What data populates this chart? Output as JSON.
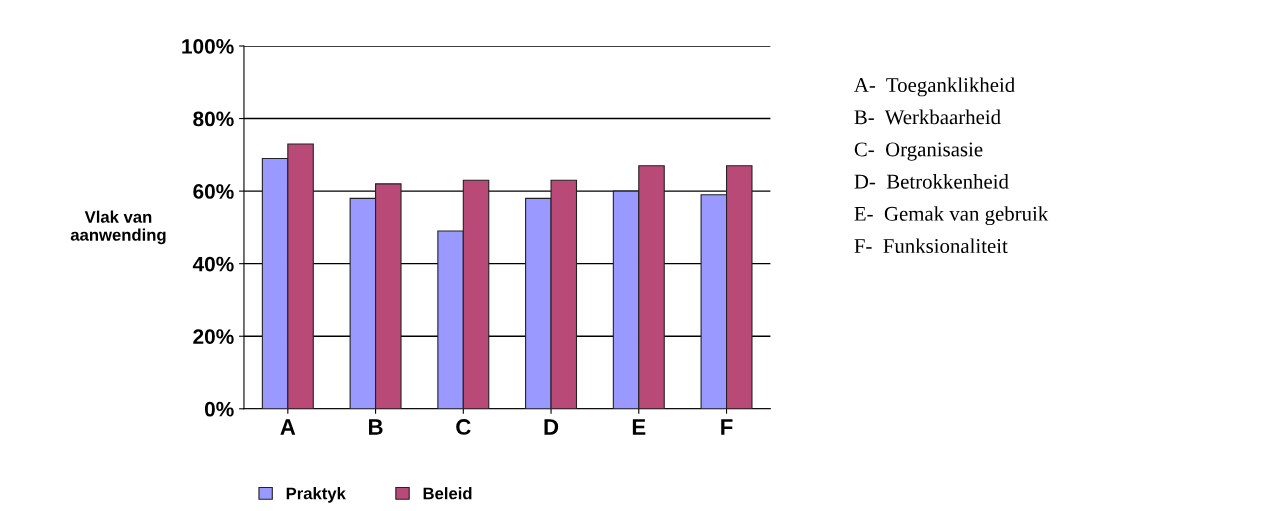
{
  "chart_data": {
    "type": "bar",
    "ylabel": "Vlak van\naanwending",
    "categories": [
      "A",
      "B",
      "C",
      "D",
      "E",
      "F"
    ],
    "series": [
      {
        "name": "Praktyk",
        "color": "#9999ff",
        "values": [
          69,
          58,
          49,
          58,
          60,
          59
        ]
      },
      {
        "name": "Beleid",
        "color": "#b94a77",
        "values": [
          73,
          62,
          63,
          63,
          67,
          67
        ]
      }
    ],
    "ylim": [
      0,
      100
    ],
    "yticks": [
      {
        "value": 0,
        "label": "0%"
      },
      {
        "value": 20,
        "label": "20%"
      },
      {
        "value": 40,
        "label": "40%"
      },
      {
        "value": 60,
        "label": "60%"
      },
      {
        "value": 80,
        "label": "80%"
      },
      {
        "value": 100,
        "label": "100%"
      }
    ],
    "grid": "y",
    "legend": "bottom",
    "annotations": [
      "A-  Toeganklikheid",
      "B-  Werkbaarheid",
      "C-  Organisasie",
      "D-  Betrokkenheid",
      "E-  Gemak van gebruik",
      "F-  Funksionaliteit"
    ]
  }
}
